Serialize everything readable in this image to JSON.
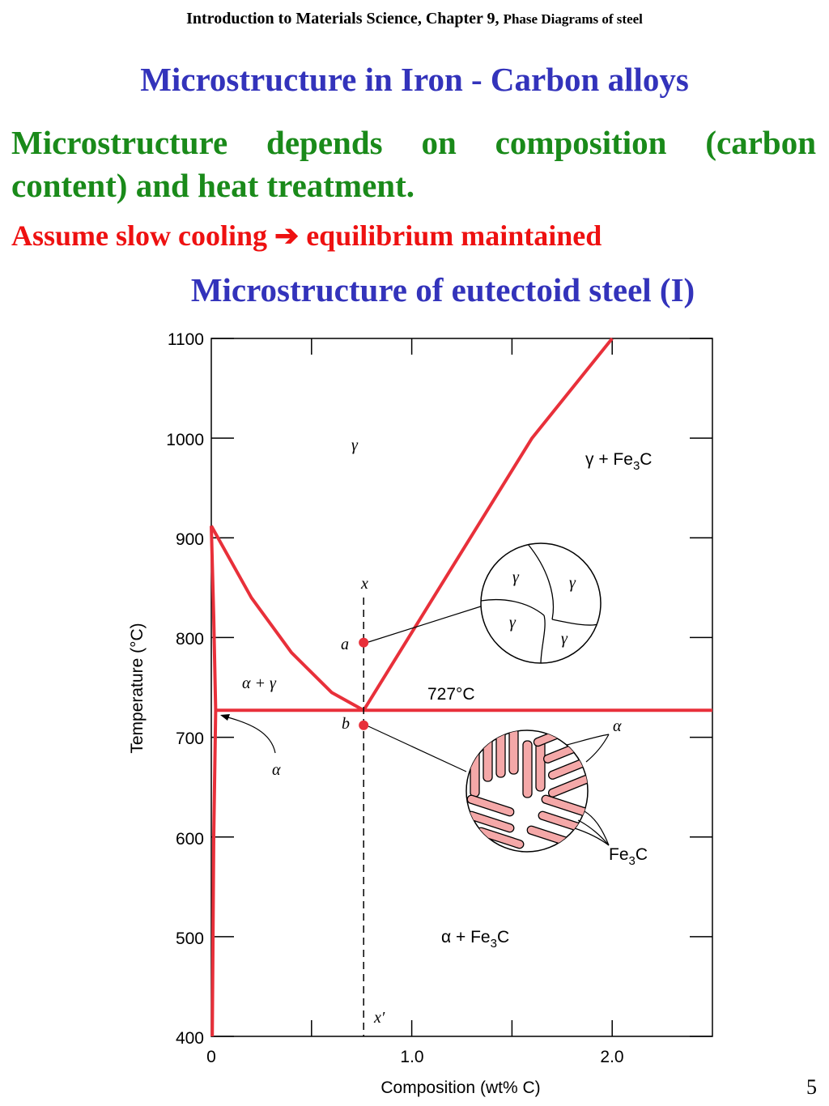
{
  "header": {
    "text_main": "Introduction to Materials Science, Chapter 9,",
    "text_small": "Phase Diagrams of steel"
  },
  "title": "Microstructure in Iron - Carbon alloys",
  "intro": "Microstructure depends on composition (carbon content) and heat treatment.",
  "assume": {
    "before": "Assume slow cooling",
    "arrow": "➔",
    "after": "equilibrium maintained"
  },
  "subtitle": "Microstructure of eutectoid steel (I)",
  "colors": {
    "title": "#3333bb",
    "intro": "#1a8a1a",
    "assume": "#ee1111",
    "phase_line": "#e8303a",
    "lamella": "#f4a8a8"
  },
  "chart_data": {
    "type": "line",
    "xlabel": "Composition (wt% C)",
    "ylabel": "Temperature (°C)",
    "xlim": [
      0,
      2.5
    ],
    "ylim": [
      400,
      1100
    ],
    "x_tick_labels": [
      "0",
      "1.0",
      "2.0"
    ],
    "y_tick_labels": [
      "400",
      "500",
      "600",
      "700",
      "800",
      "900",
      "1000",
      "1100"
    ],
    "grid": false,
    "series": [
      {
        "values": [
          [
            0.0,
            912
          ],
          [
            0.2,
            840
          ],
          [
            0.4,
            785
          ],
          [
            0.6,
            745
          ],
          [
            0.76,
            727
          ]
        ]
      },
      {
        "values": [
          [
            0.76,
            727
          ],
          [
            1.2,
            870
          ],
          [
            1.6,
            1000
          ],
          [
            2.0,
            1100
          ]
        ]
      },
      {
        "values": [
          [
            0.022,
            727
          ],
          [
            2.5,
            727
          ]
        ]
      },
      {
        "values": [
          [
            0.0,
            912
          ],
          [
            0.012,
            820
          ],
          [
            0.022,
            727
          ],
          [
            0.012,
            600
          ],
          [
            0.005,
            400
          ]
        ]
      }
    ],
    "composition_line": {
      "x": 0.76,
      "label_top": "x",
      "label_bottom": "x′"
    },
    "points": [
      {
        "label": "a",
        "x": 0.76,
        "y": 795
      },
      {
        "label": "b",
        "x": 0.76,
        "y": 712
      }
    ],
    "region_labels": {
      "gamma": "γ",
      "gamma_fe3c_prefix": "γ + Fe",
      "alpha_gamma": "α + γ",
      "alpha_fe3c_prefix": "α + Fe",
      "alpha": "α"
    },
    "temperature_annotation": "727°C",
    "microstructure_gamma_labels": [
      "γ",
      "γ",
      "γ",
      "γ"
    ],
    "microstructure_pearlite": {
      "alpha_label": "α",
      "fe3c_prefix": "Fe"
    },
    "sub3": "3",
    "c": "C"
  },
  "page_number": "5"
}
